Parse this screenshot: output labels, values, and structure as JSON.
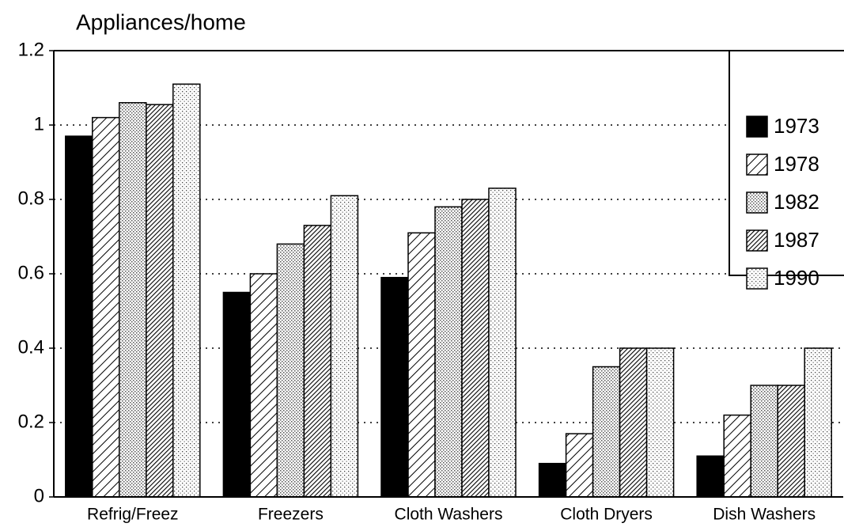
{
  "chart_data": {
    "type": "bar",
    "title": "Appliances/home",
    "categories": [
      "Refrig/Freez",
      "Freezers",
      "Cloth Washers",
      "Cloth Dryers",
      "Dish Washers"
    ],
    "series": [
      {
        "name": "1973",
        "color": "#000000",
        "pattern": "solid",
        "values": [
          0.97,
          0.55,
          0.59,
          0.09,
          0.11
        ]
      },
      {
        "name": "1978",
        "color": "#000000",
        "pattern": "hatch",
        "values": [
          1.02,
          0.6,
          0.71,
          0.17,
          0.22
        ]
      },
      {
        "name": "1982",
        "color": "#000000",
        "pattern": "dots",
        "values": [
          1.06,
          0.68,
          0.78,
          0.35,
          0.3
        ]
      },
      {
        "name": "1987",
        "color": "#000000",
        "pattern": "dense-hatch",
        "values": [
          1.055,
          0.73,
          0.8,
          0.4,
          0.3
        ]
      },
      {
        "name": "1990",
        "color": "#000000",
        "pattern": "sparse-dots",
        "values": [
          1.11,
          0.81,
          0.83,
          0.4,
          0.4
        ]
      }
    ],
    "ylim": [
      0,
      1.2
    ],
    "yticks": [
      0,
      0.2,
      0.4,
      0.6,
      0.8,
      1,
      1.2
    ],
    "grid": true,
    "legend": "top-right"
  }
}
